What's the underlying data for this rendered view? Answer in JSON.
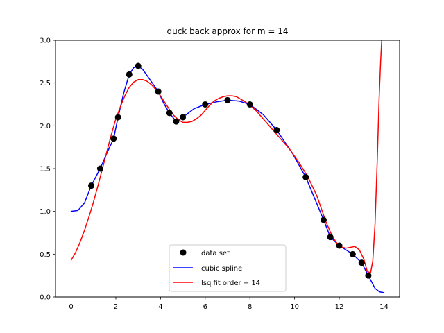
{
  "chart_data": {
    "type": "line",
    "title": "duck back approx for m = 14",
    "xlabel": "",
    "ylabel": "",
    "xlim": [
      -0.7,
      14.7
    ],
    "ylim": [
      0.0,
      3.0
    ],
    "x_ticks": [
      0,
      2,
      4,
      6,
      8,
      10,
      12,
      14
    ],
    "x_tick_labels": [
      "0",
      "2",
      "4",
      "6",
      "8",
      "10",
      "12",
      "14"
    ],
    "y_ticks": [
      0.0,
      0.5,
      1.0,
      1.5,
      2.0,
      2.5,
      3.0
    ],
    "y_tick_labels": [
      "0.0",
      "0.5",
      "1.0",
      "1.5",
      "2.0",
      "2.5",
      "3.0"
    ],
    "grid": false,
    "legend_position": "lower center",
    "series": [
      {
        "name": "data set",
        "kind": "scatter",
        "color": "#000000",
        "x": [
          0.9,
          1.3,
          1.9,
          2.1,
          2.6,
          3.0,
          3.9,
          4.4,
          4.7,
          5.0,
          6.0,
          7.0,
          8.0,
          9.2,
          10.5,
          11.3,
          11.6,
          12.0,
          12.6,
          13.0,
          13.3
        ],
        "y": [
          1.3,
          1.5,
          1.85,
          2.1,
          2.6,
          2.7,
          2.4,
          2.15,
          2.05,
          2.1,
          2.25,
          2.3,
          2.25,
          1.95,
          1.4,
          0.9,
          0.7,
          0.6,
          0.5,
          0.4,
          0.25
        ]
      },
      {
        "name": "cubic spline",
        "kind": "line",
        "color": "#0000ff",
        "x": [
          0.0,
          0.3,
          0.6,
          0.9,
          1.1,
          1.3,
          1.6,
          1.9,
          2.1,
          2.35,
          2.6,
          2.8,
          3.0,
          3.2,
          3.5,
          3.9,
          4.15,
          4.4,
          4.7,
          5.0,
          5.5,
          6.0,
          6.5,
          7.0,
          7.5,
          8.0,
          8.6,
          9.2,
          9.9,
          10.5,
          10.9,
          11.3,
          11.6,
          12.0,
          12.3,
          12.6,
          13.0,
          13.3,
          13.6,
          13.8,
          14.0
        ],
        "y": [
          1.0,
          1.01,
          1.1,
          1.3,
          1.4,
          1.5,
          1.68,
          1.85,
          2.1,
          2.38,
          2.6,
          2.68,
          2.7,
          2.66,
          2.55,
          2.4,
          2.26,
          2.15,
          2.05,
          2.1,
          2.2,
          2.25,
          2.28,
          2.3,
          2.29,
          2.25,
          2.13,
          1.95,
          1.68,
          1.4,
          1.15,
          0.9,
          0.7,
          0.6,
          0.55,
          0.5,
          0.4,
          0.25,
          0.1,
          0.06,
          0.05
        ]
      },
      {
        "name": "lsq fit order = 14",
        "kind": "line",
        "color": "#ff0000",
        "x": [
          0.0,
          0.2,
          0.4,
          0.6,
          0.8,
          1.0,
          1.2,
          1.4,
          1.6,
          1.8,
          2.0,
          2.2,
          2.4,
          2.6,
          2.8,
          3.0,
          3.2,
          3.4,
          3.6,
          3.8,
          4.0,
          4.2,
          4.4,
          4.6,
          4.8,
          5.0,
          5.2,
          5.4,
          5.6,
          5.8,
          6.0,
          6.2,
          6.4,
          6.6,
          6.8,
          7.0,
          7.2,
          7.4,
          7.6,
          7.8,
          8.0,
          8.3,
          8.6,
          9.0,
          9.4,
          9.8,
          10.2,
          10.6,
          11.0,
          11.4,
          11.7,
          12.0,
          12.3,
          12.5,
          12.7,
          12.9,
          13.1,
          13.25,
          13.4,
          13.5,
          13.6,
          13.7,
          13.78,
          13.85,
          13.9
        ],
        "y": [
          0.43,
          0.52,
          0.64,
          0.78,
          0.94,
          1.11,
          1.3,
          1.5,
          1.7,
          1.9,
          2.08,
          2.22,
          2.35,
          2.45,
          2.51,
          2.54,
          2.54,
          2.52,
          2.48,
          2.42,
          2.35,
          2.27,
          2.19,
          2.12,
          2.07,
          2.04,
          2.04,
          2.05,
          2.08,
          2.12,
          2.18,
          2.24,
          2.29,
          2.32,
          2.34,
          2.35,
          2.35,
          2.34,
          2.31,
          2.28,
          2.24,
          2.17,
          2.08,
          1.96,
          1.84,
          1.72,
          1.57,
          1.4,
          1.18,
          0.88,
          0.7,
          0.59,
          0.57,
          0.58,
          0.59,
          0.55,
          0.44,
          0.3,
          0.28,
          0.42,
          0.85,
          1.6,
          2.3,
          2.75,
          3.0
        ]
      }
    ],
    "legend": [
      {
        "label": "data set",
        "marker": "circle",
        "color": "#000000"
      },
      {
        "label": "cubic spline",
        "marker": "line",
        "color": "#0000ff"
      },
      {
        "label": "lsq fit order = 14",
        "marker": "line",
        "color": "#ff0000"
      }
    ]
  }
}
